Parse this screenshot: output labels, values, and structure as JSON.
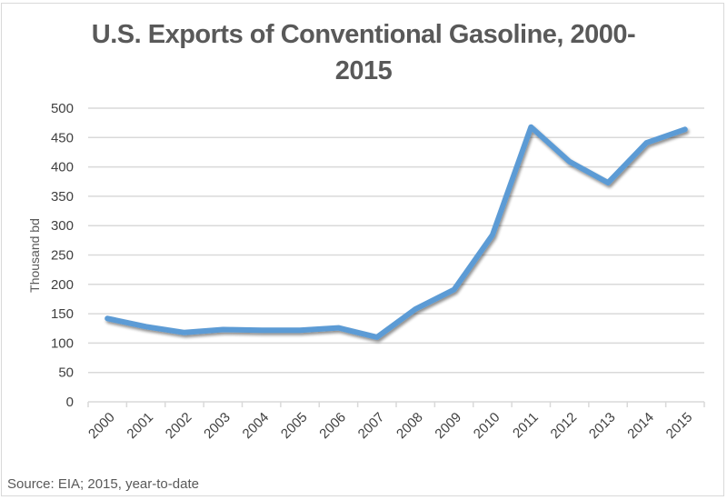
{
  "chart_data": {
    "type": "line",
    "title_lines": [
      "U.S. Exports of Conventional Gasoline, 2000-",
      "2015"
    ],
    "title": "U.S. Exports of Conventional Gasoline, 2000-2015",
    "xlabel": "",
    "ylabel": "Thousand bd",
    "ylim": [
      0,
      500
    ],
    "yticks": [
      0,
      50,
      100,
      150,
      200,
      250,
      300,
      350,
      400,
      450,
      500
    ],
    "categories": [
      "2000",
      "2001",
      "2002",
      "2003",
      "2004",
      "2005",
      "2006",
      "2007",
      "2008",
      "2009",
      "2010",
      "2011",
      "2012",
      "2013",
      "2014",
      "2015"
    ],
    "series": [
      {
        "name": "U.S. Exports of Conventional Gasoline",
        "color": "#5b9bd5",
        "values": [
          142,
          128,
          118,
          123,
          122,
          122,
          126,
          110,
          158,
          191,
          284,
          468,
          409,
          373,
          441,
          464
        ]
      }
    ],
    "grid": true,
    "legend": "none",
    "x_tick_rotation": "-45 degrees",
    "gridline_color": "#d9d9d9",
    "source_note": "Source: EIA; 2015, year-to-date"
  }
}
